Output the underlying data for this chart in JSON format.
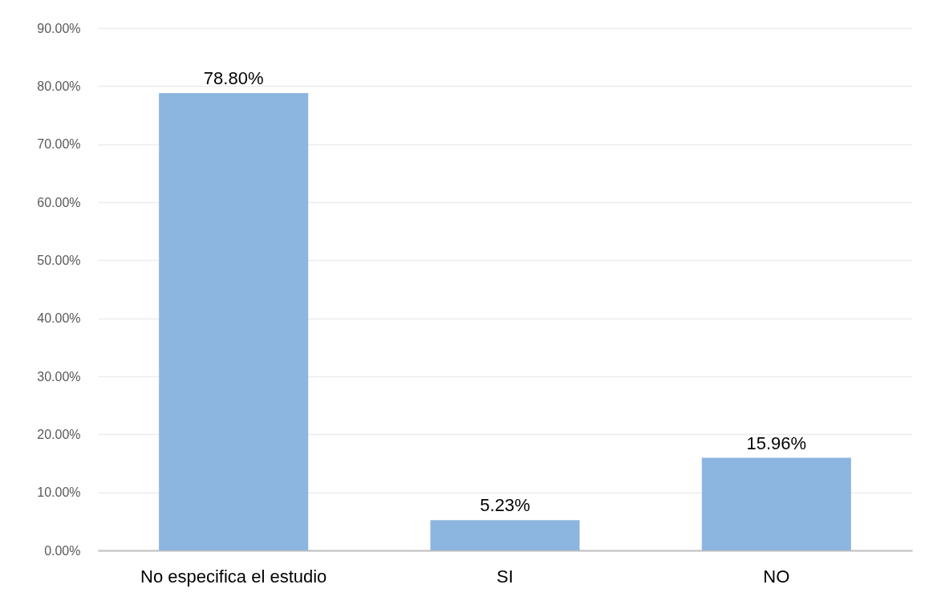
{
  "chart_data": {
    "type": "bar",
    "categories": [
      "No especifica el estudio",
      "SI",
      "NO"
    ],
    "values": [
      78.8,
      5.23,
      15.96
    ],
    "color": "#8cb6e0",
    "value_labels": [
      "78.80%",
      "5.23%",
      "15.96%"
    ],
    "ylim": [
      0,
      90
    ],
    "yticks": [
      {
        "value": 0,
        "label": "0.00%"
      },
      {
        "value": 10,
        "label": "10.00%"
      },
      {
        "value": 20,
        "label": "20.00%"
      },
      {
        "value": 30,
        "label": "30.00%"
      },
      {
        "value": 40,
        "label": "40.00%"
      },
      {
        "value": 50,
        "label": "50.00%"
      },
      {
        "value": 60,
        "label": "60.00%"
      },
      {
        "value": 70,
        "label": "70.00%"
      },
      {
        "value": 80,
        "label": "80.00%"
      },
      {
        "value": 90,
        "label": "90.00%"
      }
    ],
    "grid": "y"
  }
}
